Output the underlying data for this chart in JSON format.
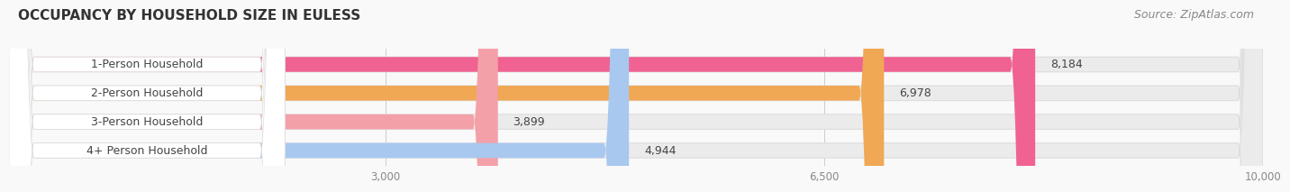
{
  "title": "OCCUPANCY BY HOUSEHOLD SIZE IN EULESS",
  "source": "Source: ZipAtlas.com",
  "categories": [
    "1-Person Household",
    "2-Person Household",
    "3-Person Household",
    "4+ Person Household"
  ],
  "values": [
    8184,
    6978,
    3899,
    4944
  ],
  "bar_colors": [
    "#f06292",
    "#f0a854",
    "#f4a0a8",
    "#a8c8f0"
  ],
  "bar_bg_colors": [
    "#ebebeb",
    "#ebebeb",
    "#ebebeb",
    "#ebebeb"
  ],
  "label_bg_colors": [
    "#ffffff",
    "#ffffff",
    "#ffffff",
    "#ffffff"
  ],
  "value_labels": [
    "8,184",
    "6,978",
    "3,899",
    "4,944"
  ],
  "xlim": [
    0,
    10000
  ],
  "xticks": [
    3000,
    6500,
    10000
  ],
  "xtick_labels": [
    "3,000",
    "6,500",
    "10,000"
  ],
  "title_fontsize": 11,
  "source_fontsize": 9,
  "label_fontsize": 9,
  "value_fontsize": 9,
  "bg_color": "#f9f9f9",
  "text_color": "#444444"
}
